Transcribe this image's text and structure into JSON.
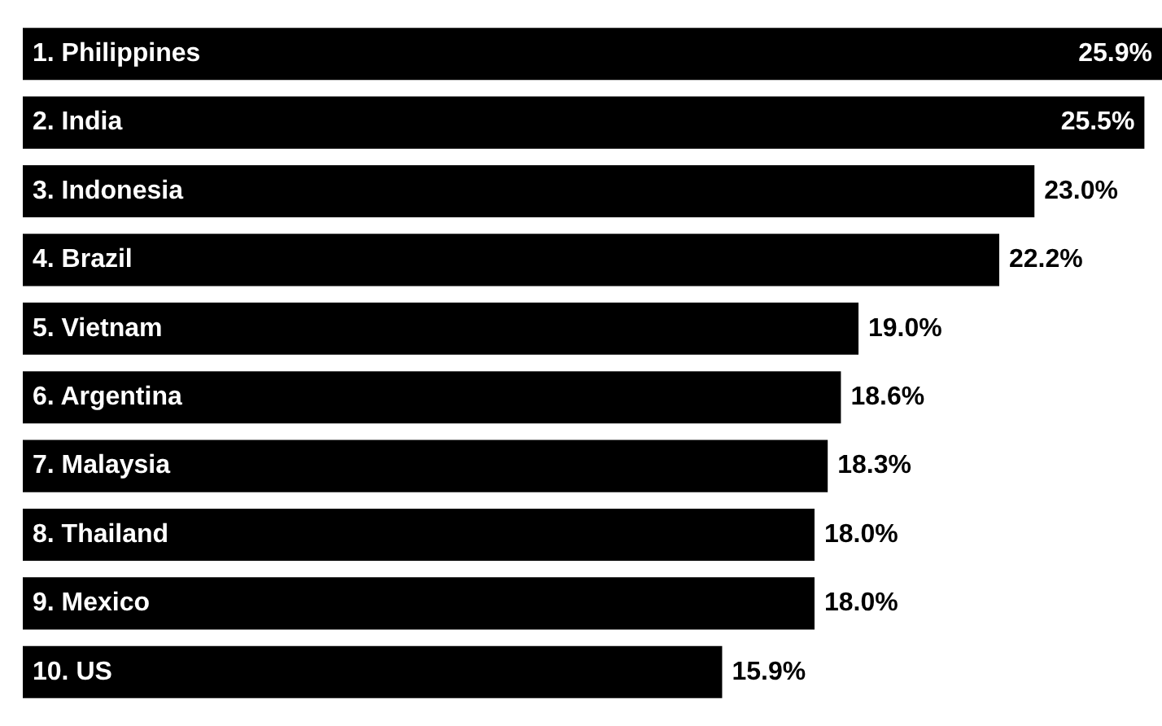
{
  "chart_data": {
    "type": "bar",
    "orientation": "horizontal",
    "categories": [
      "1. Philippines",
      "2. India",
      "3. Indonesia",
      "4. Brazil",
      "5. Vietnam",
      "6. Argentina",
      "7. Malaysia",
      "8. Thailand",
      "9. Mexico",
      "10. US"
    ],
    "values": [
      25.9,
      25.5,
      23.0,
      22.2,
      19.0,
      18.6,
      18.3,
      18.0,
      18.0,
      15.9
    ],
    "value_labels": [
      "25.9%",
      "25.5%",
      "23.0%",
      "22.2%",
      "19.0%",
      "18.6%",
      "18.3%",
      "18.0%",
      "18.0%",
      "15.9%"
    ],
    "color": "#000000"
  }
}
